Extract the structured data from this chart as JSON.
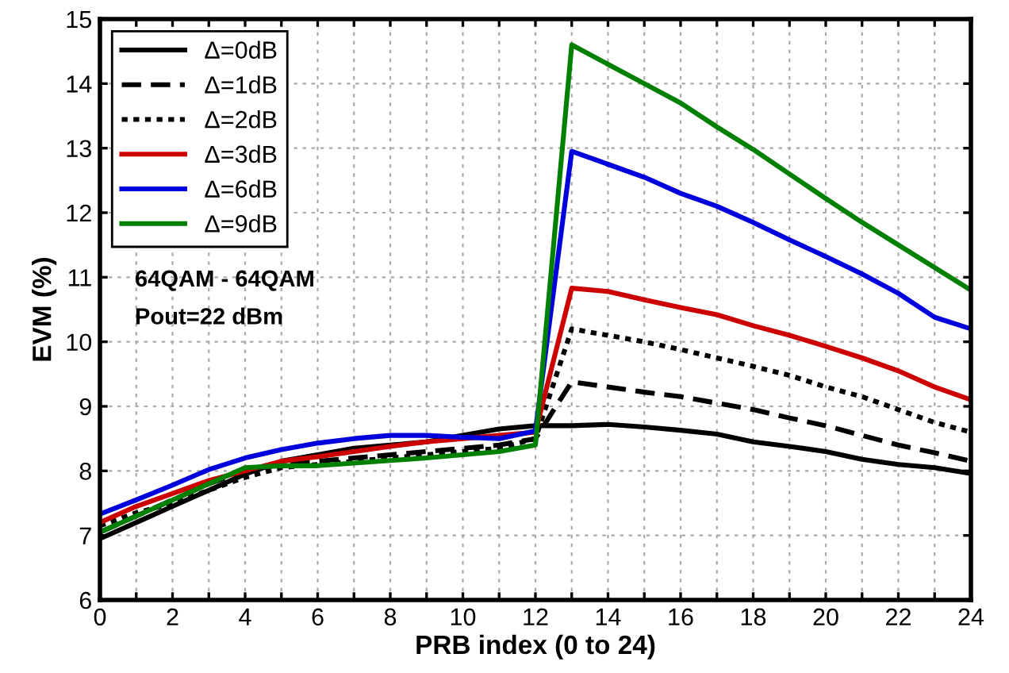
{
  "chart_data": {
    "type": "line",
    "xlabel": "PRB index (0 to 24)",
    "ylabel": "EVM (%)",
    "x": [
      0,
      1,
      2,
      3,
      4,
      5,
      6,
      7,
      8,
      9,
      10,
      11,
      12,
      13,
      14,
      15,
      16,
      17,
      18,
      19,
      20,
      21,
      22,
      23,
      24
    ],
    "xlim": [
      0,
      24
    ],
    "ylim": [
      6,
      15
    ],
    "xticks": [
      0,
      {
        "value": 1,
        "label": null
      },
      2,
      {
        "value": 3,
        "label": null
      },
      4,
      {
        "value": 5,
        "label": null
      },
      6,
      {
        "value": 7,
        "label": null
      },
      8,
      {
        "value": 9,
        "label": null
      },
      10,
      {
        "value": 11,
        "label": null
      },
      12,
      {
        "value": 13,
        "label": null
      },
      14,
      {
        "value": 15,
        "label": null
      },
      16,
      {
        "value": 17,
        "label": null
      },
      18,
      {
        "value": 19,
        "label": null
      },
      20,
      {
        "value": 21,
        "label": null
      },
      22,
      {
        "value": 23,
        "label": null
      },
      24
    ],
    "yticks": [
      6,
      7,
      8,
      9,
      10,
      11,
      12,
      13,
      14,
      15
    ],
    "grid": true,
    "legend": "top left",
    "marker": "none",
    "annotations": [
      "64QAM - 64QAM",
      "Pout=22 dBm"
    ],
    "series": [
      {
        "name": "Δ=0dB",
        "color": "#000000",
        "line_style": "solid",
        "values": [
          6.95,
          7.2,
          7.45,
          7.7,
          7.95,
          8.15,
          8.25,
          8.35,
          8.4,
          8.45,
          8.55,
          8.65,
          8.7,
          8.7,
          8.72,
          8.68,
          8.63,
          8.57,
          8.45,
          8.38,
          8.3,
          8.18,
          8.1,
          8.05,
          7.96
        ]
      },
      {
        "name": "Δ=1dB",
        "color": "#000000",
        "line_style": "dashed",
        "values": [
          7.05,
          7.3,
          7.55,
          7.8,
          8.0,
          8.1,
          8.15,
          8.2,
          8.25,
          8.3,
          8.35,
          8.4,
          8.5,
          9.38,
          9.3,
          9.22,
          9.15,
          9.05,
          8.95,
          8.82,
          8.7,
          8.55,
          8.4,
          8.28,
          8.15
        ]
      },
      {
        "name": "Δ=2dB",
        "color": "#000000",
        "line_style": "dotted",
        "values": [
          7.15,
          7.35,
          7.5,
          7.7,
          7.9,
          8.05,
          8.1,
          8.15,
          8.2,
          8.25,
          8.3,
          8.35,
          8.5,
          10.2,
          10.1,
          10.0,
          9.88,
          9.75,
          9.62,
          9.48,
          9.3,
          9.15,
          8.95,
          8.75,
          8.6
        ]
      },
      {
        "name": "Δ=3dB",
        "color": "#cc0000",
        "line_style": "solid",
        "values": [
          7.2,
          7.45,
          7.65,
          7.85,
          8.0,
          8.15,
          8.22,
          8.3,
          8.38,
          8.45,
          8.5,
          8.55,
          8.6,
          10.83,
          10.78,
          10.65,
          10.53,
          10.42,
          10.25,
          10.1,
          9.93,
          9.75,
          9.55,
          9.3,
          9.1
        ]
      },
      {
        "name": "Δ=6dB",
        "color": "#0000dd",
        "line_style": "solid",
        "values": [
          7.33,
          7.55,
          7.78,
          8.02,
          8.2,
          8.33,
          8.43,
          8.5,
          8.55,
          8.55,
          8.52,
          8.5,
          8.62,
          12.95,
          12.75,
          12.55,
          12.3,
          12.1,
          11.85,
          11.58,
          11.32,
          11.05,
          10.75,
          10.38,
          10.2
        ]
      },
      {
        "name": "Δ=9dB",
        "color": "#008000",
        "line_style": "solid",
        "values": [
          7.05,
          7.3,
          7.55,
          7.8,
          8.05,
          8.08,
          8.08,
          8.12,
          8.16,
          8.2,
          8.25,
          8.3,
          8.4,
          14.6,
          14.3,
          14.0,
          13.7,
          13.33,
          12.98,
          12.6,
          12.22,
          11.85,
          11.5,
          11.15,
          10.8
        ]
      }
    ]
  }
}
